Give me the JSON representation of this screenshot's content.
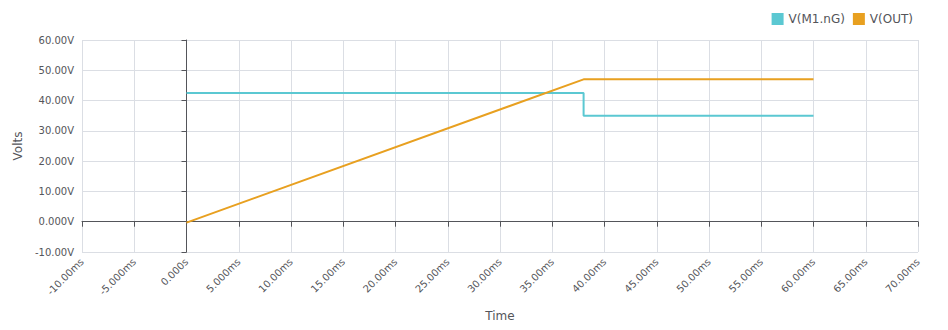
{
  "chart_data": {
    "type": "line",
    "x_label": "Time",
    "y_label": "Volts",
    "x": [
      0,
      38,
      38,
      60
    ],
    "series": [
      {
        "name": "V(M1.nG)",
        "color": "#5bc8d2",
        "values": [
          42.5,
          42.5,
          35.0,
          35.0
        ]
      },
      {
        "name": "V(OUT)",
        "color": "#e8a020",
        "values": [
          -0.3,
          47.0,
          47.0,
          47.0
        ]
      }
    ],
    "xlim": [
      -10,
      70
    ],
    "xticks": [
      {
        "value": -10,
        "label": "-10.00ms"
      },
      {
        "value": -5,
        "label": "-5.000ms"
      },
      {
        "value": 0,
        "label": "0.000s"
      },
      {
        "value": 5,
        "label": "5.000ms"
      },
      {
        "value": 10,
        "label": "10.00ms"
      },
      {
        "value": 15,
        "label": "15.00ms"
      },
      {
        "value": 20,
        "label": "20.00ms"
      },
      {
        "value": 25,
        "label": "25.00ms"
      },
      {
        "value": 30,
        "label": "30.00ms"
      },
      {
        "value": 35,
        "label": "35.00ms"
      },
      {
        "value": 40,
        "label": "40.00ms"
      },
      {
        "value": 45,
        "label": "45.00ms"
      },
      {
        "value": 50,
        "label": "50.00ms"
      },
      {
        "value": 55,
        "label": "55.00ms"
      },
      {
        "value": 60,
        "label": "60.00ms"
      },
      {
        "value": 65,
        "label": "65.00ms"
      },
      {
        "value": 70,
        "label": "70.00ms"
      }
    ],
    "ylim": [
      -10,
      60
    ],
    "yticks": [
      {
        "value": -10,
        "label": "-10.00V"
      },
      {
        "value": 0,
        "label": "0.000V"
      },
      {
        "value": 10,
        "label": "10.00V"
      },
      {
        "value": 20,
        "label": "20.00V"
      },
      {
        "value": 30,
        "label": "30.00V"
      },
      {
        "value": 40,
        "label": "40.00V"
      },
      {
        "value": 50,
        "label": "50.00V"
      },
      {
        "value": 60,
        "label": "60.00V"
      }
    ],
    "grid": true,
    "legend": "upper right"
  }
}
